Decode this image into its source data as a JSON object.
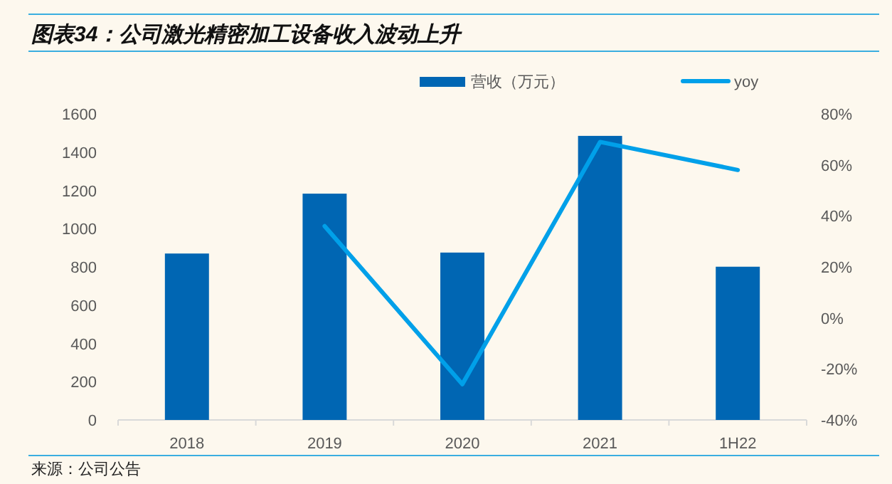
{
  "chart_data": {
    "type": "bar",
    "title": "图表34：公司激光精密加工设备收入波动上升",
    "categories": [
      "2018",
      "2019",
      "2020",
      "2021",
      "1H22"
    ],
    "series": [
      {
        "name": "营收（万元）",
        "color": "#0066b3",
        "values": [
          870,
          1183,
          875,
          1485,
          801
        ]
      },
      {
        "name": "yoy",
        "type": "line",
        "axis": "y2",
        "color": "#00a0e9",
        "values": [
          null,
          36,
          -26,
          69,
          58
        ]
      }
    ],
    "ylim": [
      0,
      1600
    ],
    "yticks": [
      0,
      200,
      400,
      600,
      800,
      1000,
      1200,
      1400,
      1600
    ],
    "y2lim": [
      -40,
      80
    ],
    "y2ticks": [
      {
        "value": -40,
        "label": "-40%"
      },
      {
        "value": -20,
        "label": "-20%"
      },
      {
        "value": 0,
        "label": "0%"
      },
      {
        "value": 20,
        "label": "20%"
      },
      {
        "value": 40,
        "label": "40%"
      },
      {
        "value": 60,
        "label": "60%"
      },
      {
        "value": 80,
        "label": "80%"
      }
    ],
    "legend": "top",
    "grid": false,
    "annotations": [
      "来源：公司公告"
    ]
  }
}
